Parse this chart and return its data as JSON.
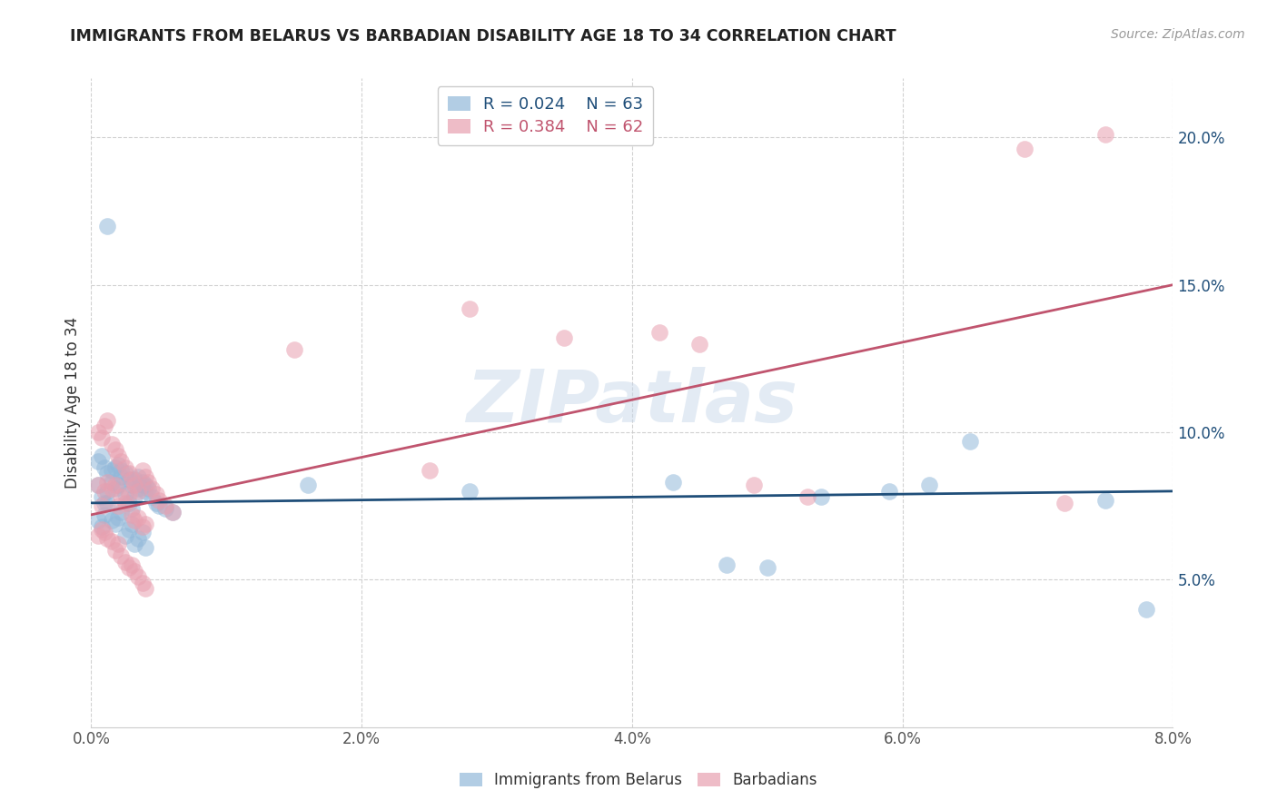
{
  "title": "IMMIGRANTS FROM BELARUS VS BARBADIAN DISABILITY AGE 18 TO 34 CORRELATION CHART",
  "source": "Source: ZipAtlas.com",
  "ylabel_label": "Disability Age 18 to 34",
  "xlim": [
    0.0,
    0.08
  ],
  "ylim": [
    0.0,
    0.22
  ],
  "blue_color": "#92b8d9",
  "pink_color": "#e8a0b0",
  "blue_line_color": "#1f4e79",
  "pink_line_color": "#c0546e",
  "blue_r": "0.024",
  "blue_n": "63",
  "pink_r": "0.384",
  "pink_n": "62",
  "legend1_label": "Immigrants from Belarus",
  "legend2_label": "Barbadians",
  "watermark": "ZIPatlas",
  "scatter_blue_x": [
    0.0005,
    0.0008,
    0.001,
    0.0012,
    0.0015,
    0.0018,
    0.002,
    0.0022,
    0.0025,
    0.0028,
    0.003,
    0.0032,
    0.0035,
    0.0038,
    0.004,
    0.0005,
    0.0008,
    0.001,
    0.0012,
    0.0015,
    0.0018,
    0.002,
    0.0022,
    0.0025,
    0.0028,
    0.003,
    0.0032,
    0.0035,
    0.0038,
    0.004,
    0.0005,
    0.0008,
    0.001,
    0.0012,
    0.0015,
    0.0018,
    0.002,
    0.0022,
    0.0025,
    0.0028,
    0.003,
    0.0032,
    0.0035,
    0.0038,
    0.004,
    0.0042,
    0.0045,
    0.0048,
    0.005,
    0.0055,
    0.006,
    0.0012,
    0.016,
    0.028,
    0.043,
    0.047,
    0.05,
    0.054,
    0.059,
    0.062,
    0.065,
    0.075,
    0.078
  ],
  "scatter_blue_y": [
    0.082,
    0.078,
    0.076,
    0.08,
    0.083,
    0.081,
    0.082,
    0.085,
    0.079,
    0.076,
    0.074,
    0.078,
    0.081,
    0.083,
    0.082,
    0.07,
    0.068,
    0.072,
    0.076,
    0.07,
    0.069,
    0.071,
    0.073,
    0.065,
    0.067,
    0.069,
    0.062,
    0.064,
    0.066,
    0.061,
    0.09,
    0.092,
    0.088,
    0.086,
    0.087,
    0.088,
    0.089,
    0.087,
    0.086,
    0.084,
    0.082,
    0.084,
    0.085,
    0.082,
    0.08,
    0.081,
    0.078,
    0.076,
    0.075,
    0.074,
    0.073,
    0.17,
    0.082,
    0.08,
    0.083,
    0.055,
    0.054,
    0.078,
    0.08,
    0.082,
    0.097,
    0.077,
    0.04
  ],
  "scatter_pink_x": [
    0.0005,
    0.0008,
    0.001,
    0.0012,
    0.0015,
    0.0018,
    0.002,
    0.0022,
    0.0025,
    0.0028,
    0.003,
    0.0032,
    0.0035,
    0.0038,
    0.004,
    0.0005,
    0.0008,
    0.001,
    0.0012,
    0.0015,
    0.0018,
    0.002,
    0.0022,
    0.0025,
    0.0028,
    0.003,
    0.0032,
    0.0035,
    0.0038,
    0.004,
    0.0005,
    0.0008,
    0.001,
    0.0012,
    0.0015,
    0.0018,
    0.002,
    0.0022,
    0.0025,
    0.0028,
    0.003,
    0.0032,
    0.0035,
    0.0038,
    0.004,
    0.0042,
    0.0045,
    0.0048,
    0.005,
    0.0055,
    0.006,
    0.015,
    0.025,
    0.028,
    0.035,
    0.042,
    0.045,
    0.049,
    0.053,
    0.069,
    0.072,
    0.075
  ],
  "scatter_pink_y": [
    0.082,
    0.075,
    0.08,
    0.083,
    0.081,
    0.082,
    0.075,
    0.078,
    0.076,
    0.079,
    0.072,
    0.07,
    0.071,
    0.068,
    0.069,
    0.065,
    0.067,
    0.066,
    0.064,
    0.063,
    0.06,
    0.062,
    0.058,
    0.056,
    0.054,
    0.055,
    0.053,
    0.051,
    0.049,
    0.047,
    0.1,
    0.098,
    0.102,
    0.104,
    0.096,
    0.094,
    0.092,
    0.09,
    0.088,
    0.086,
    0.084,
    0.082,
    0.08,
    0.087,
    0.085,
    0.083,
    0.081,
    0.079,
    0.077,
    0.075,
    0.073,
    0.128,
    0.087,
    0.142,
    0.132,
    0.134,
    0.13,
    0.082,
    0.078,
    0.196,
    0.076,
    0.201
  ],
  "blue_trend_x": [
    0.0,
    0.08
  ],
  "blue_trend_y": [
    0.076,
    0.08
  ],
  "pink_trend_x": [
    0.0,
    0.08
  ],
  "pink_trend_y": [
    0.072,
    0.15
  ]
}
